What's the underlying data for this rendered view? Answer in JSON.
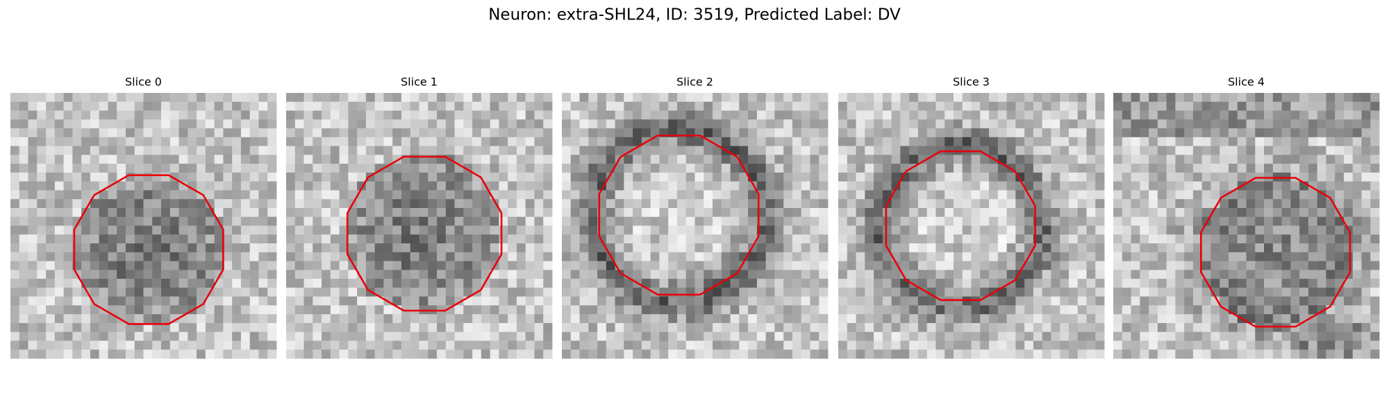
{
  "title": "Neuron: extra-SHL24, ID: 3519, Predicted Label: DV",
  "panels": [
    {
      "title": "Slice 0"
    },
    {
      "title": "Slice 1"
    },
    {
      "title": "Slice 2"
    },
    {
      "title": "Slice 3"
    },
    {
      "title": "Slice 4"
    }
  ]
}
